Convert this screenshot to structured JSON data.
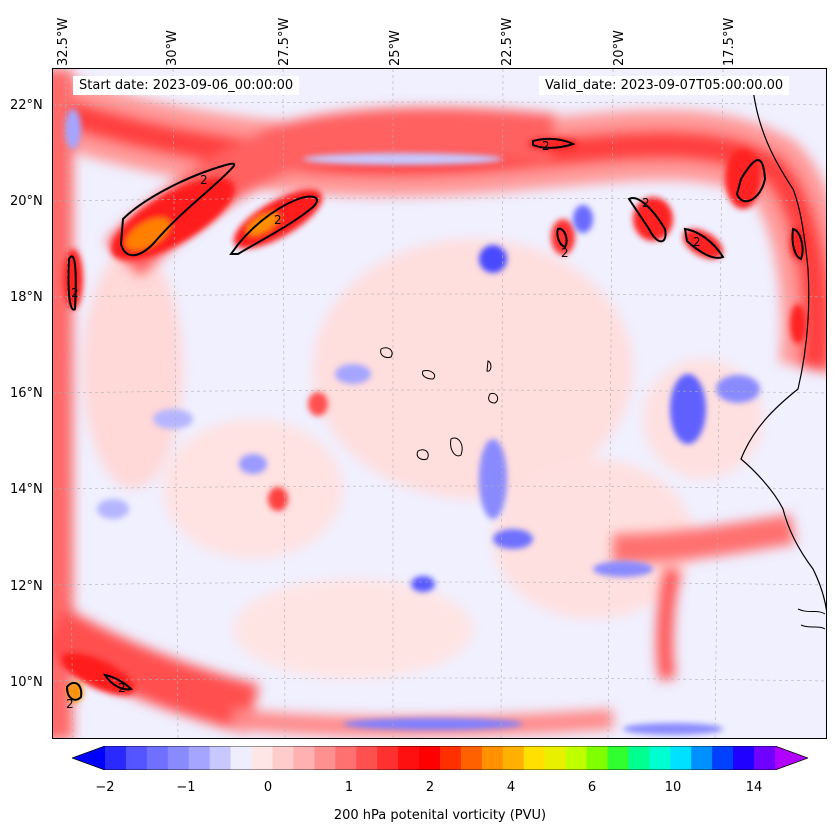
{
  "header": {
    "start_date": "Start date: 2023-09-06_00:00:00",
    "valid_date": "Valid_date: 2023-09-07T05:00:00.00"
  },
  "axes": {
    "lon_labels": [
      "32.5°W",
      "30°W",
      "27.5°W",
      "25°W",
      "22.5°W",
      "20°W",
      "17.5°W"
    ],
    "lat_labels": [
      "22°N",
      "20°N",
      "18°N",
      "16°N",
      "14°N",
      "12°N",
      "10°N"
    ]
  },
  "contour_label": "2",
  "colorbar": {
    "title": "200 hPa potenital vorticity (PVU)",
    "ticks": [
      "−2",
      "−1",
      "0",
      "1",
      "2",
      "4",
      "6",
      "10",
      "14"
    ],
    "colors": [
      "#0000ff",
      "#2a2aff",
      "#5555ff",
      "#7070ff",
      "#8a8aff",
      "#a5a5ff",
      "#c8c8ff",
      "#eeeeff",
      "#ffe6e6",
      "#ffcccc",
      "#ffb0b0",
      "#ff9090",
      "#ff7070",
      "#ff5050",
      "#ff3030",
      "#ff1010",
      "#ff0000",
      "#ff3000",
      "#ff6000",
      "#ff9000",
      "#ffb000",
      "#ffe000",
      "#e8f000",
      "#c0ff00",
      "#80ff00",
      "#30ff30",
      "#00ff90",
      "#00ffd0",
      "#00e0ff",
      "#0090ff",
      "#0040ff",
      "#2000ff",
      "#7000ff",
      "#b000ff"
    ]
  }
}
